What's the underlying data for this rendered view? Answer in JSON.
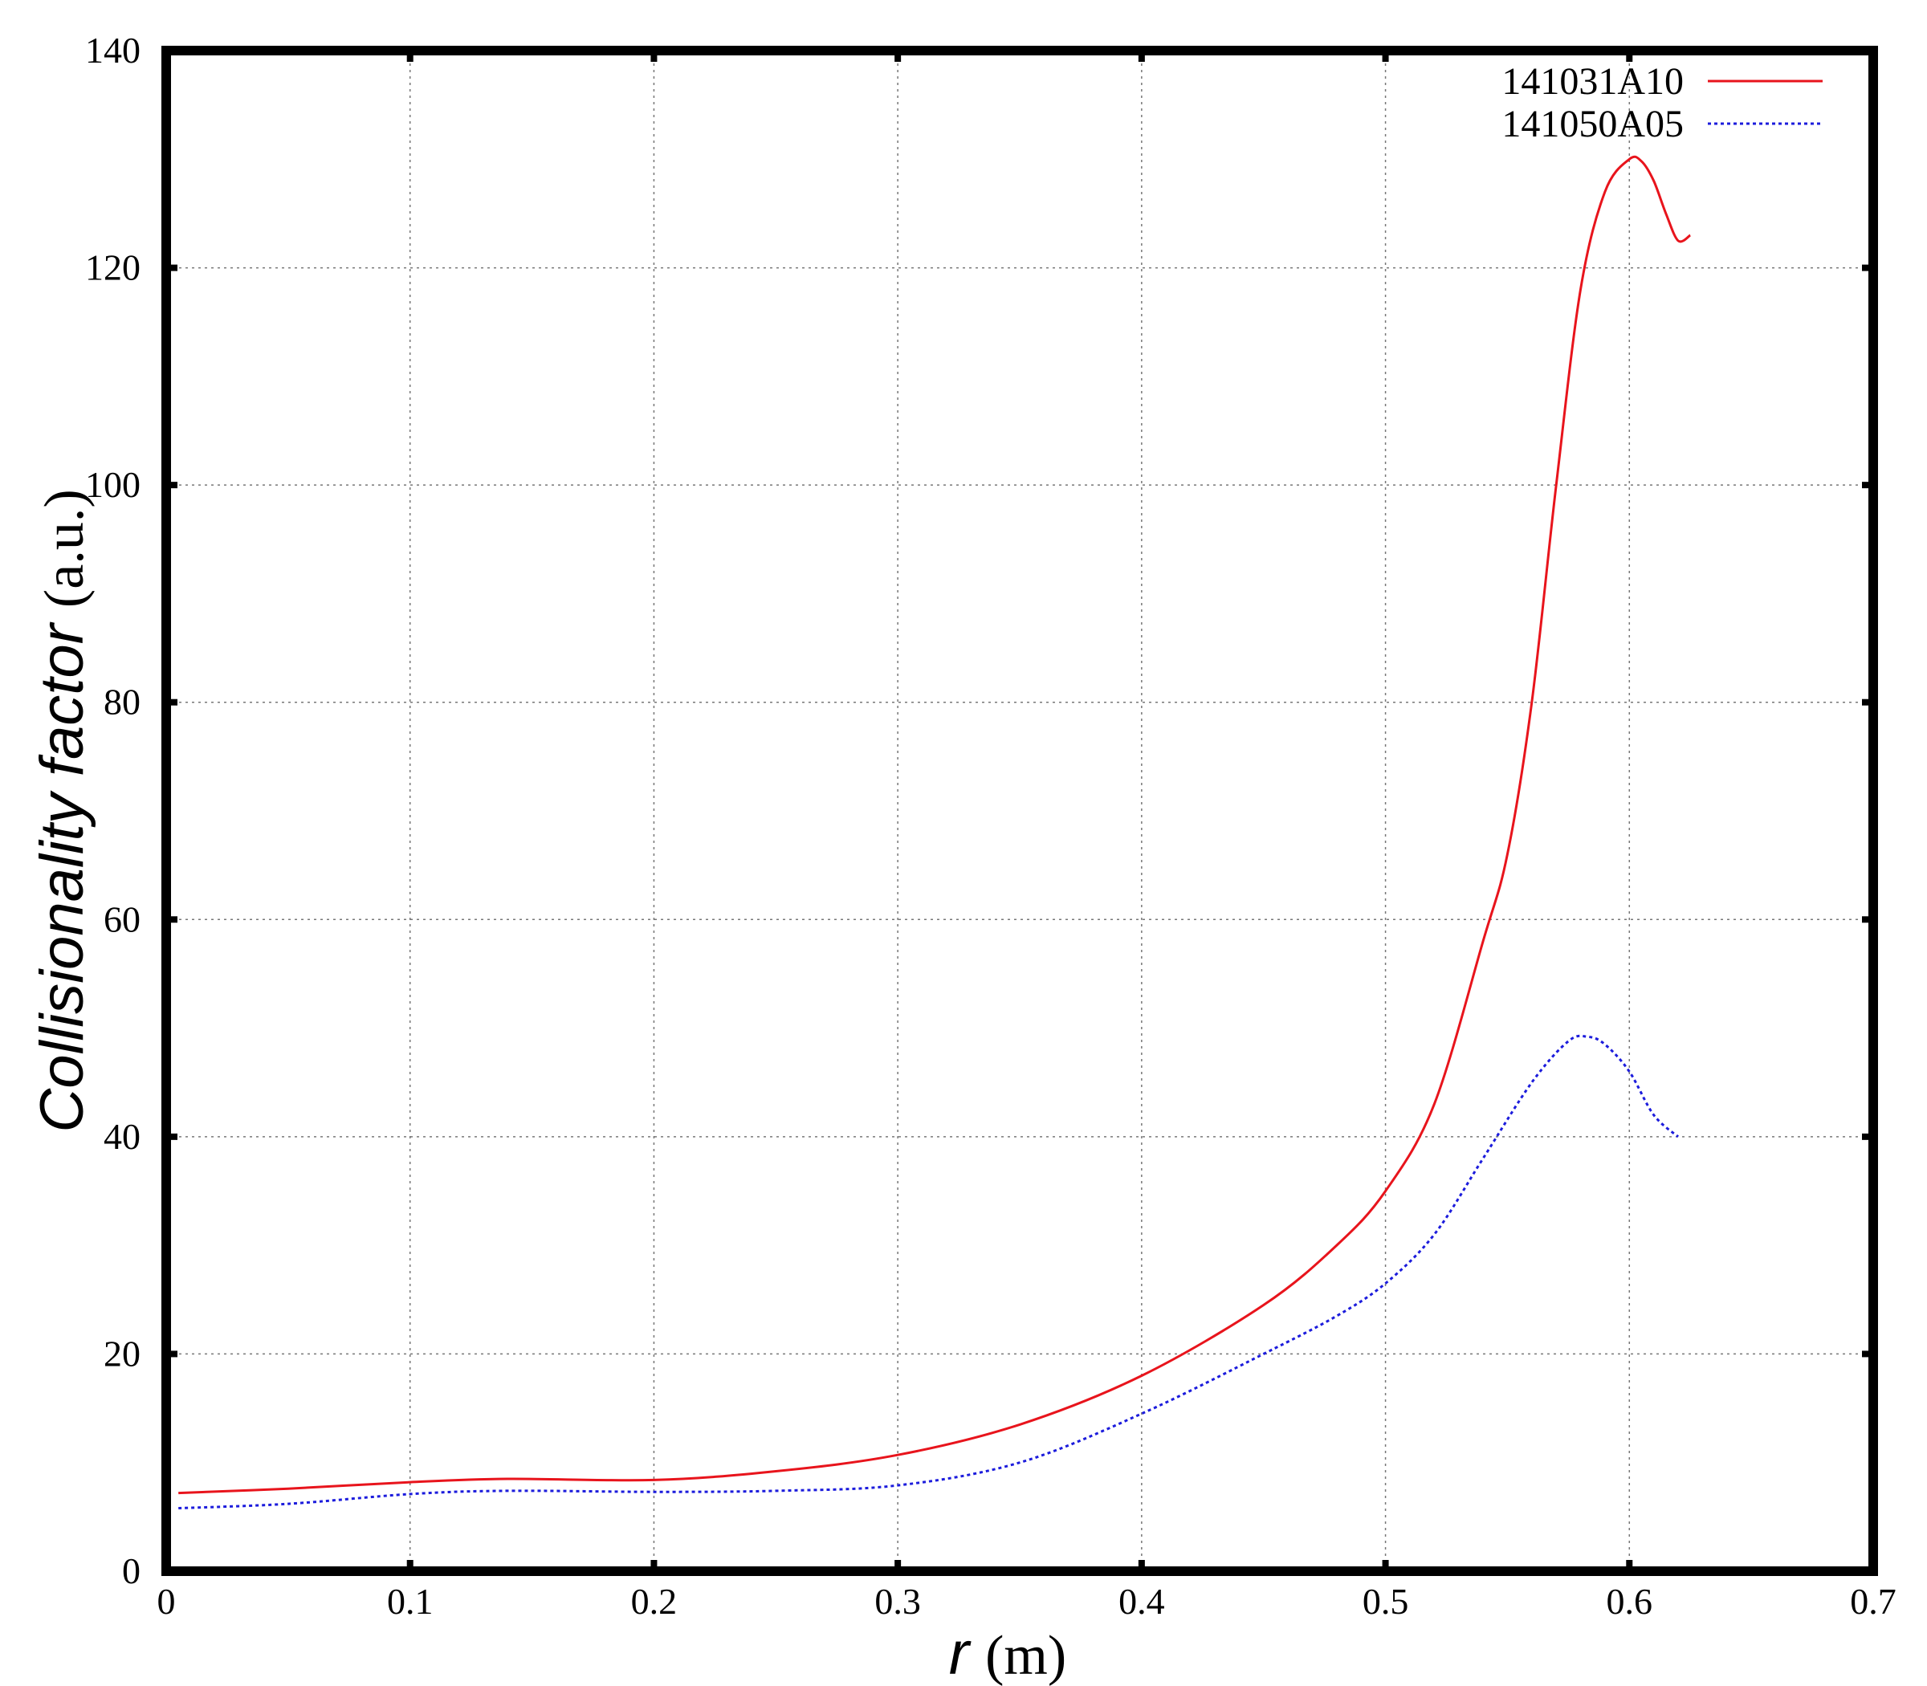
{
  "chart_data": {
    "type": "line",
    "title": "",
    "xlabel": {
      "symbol": "r",
      "unit": "(m)"
    },
    "ylabel": {
      "symbol": "Collisionality factor",
      "unit": "(a.u.)"
    },
    "xlim": [
      0,
      0.7
    ],
    "ylim": [
      0,
      140
    ],
    "xticks": [
      0,
      0.1,
      0.2,
      0.3,
      0.4,
      0.5,
      0.6,
      0.7
    ],
    "xtick_labels": [
      "0",
      "0.1",
      "0.2",
      "0.3",
      "0.4",
      "0.5",
      "0.6",
      "0.7"
    ],
    "yticks": [
      0,
      20,
      40,
      60,
      80,
      100,
      120,
      140
    ],
    "ytick_labels": [
      "0",
      "20",
      "40",
      "60",
      "80",
      "100",
      "120",
      "140"
    ],
    "grid": true,
    "legend_position": "top-right",
    "series": [
      {
        "name": "141031A10",
        "color": "#e8141c",
        "style": "solid",
        "points": [
          [
            0.005,
            7.2
          ],
          [
            0.05,
            7.6
          ],
          [
            0.1,
            8.2
          ],
          [
            0.14,
            8.5
          ],
          [
            0.2,
            8.4
          ],
          [
            0.25,
            9.2
          ],
          [
            0.3,
            10.7
          ],
          [
            0.35,
            13.5
          ],
          [
            0.4,
            18.0
          ],
          [
            0.45,
            24.5
          ],
          [
            0.48,
            30.0
          ],
          [
            0.5,
            35.0
          ],
          [
            0.52,
            43.0
          ],
          [
            0.54,
            58.0
          ],
          [
            0.55,
            66.0
          ],
          [
            0.56,
            80.0
          ],
          [
            0.57,
            100.0
          ],
          [
            0.58,
            118.0
          ],
          [
            0.59,
            127.0
          ],
          [
            0.6,
            130.0
          ],
          [
            0.605,
            129.8
          ],
          [
            0.61,
            128.0
          ],
          [
            0.615,
            125.0
          ],
          [
            0.62,
            122.5
          ],
          [
            0.625,
            123.0
          ]
        ]
      },
      {
        "name": "141050A05",
        "color": "#1c1cdc",
        "style": "dotted",
        "points": [
          [
            0.005,
            5.8
          ],
          [
            0.05,
            6.2
          ],
          [
            0.1,
            7.1
          ],
          [
            0.14,
            7.4
          ],
          [
            0.2,
            7.3
          ],
          [
            0.25,
            7.4
          ],
          [
            0.3,
            7.9
          ],
          [
            0.35,
            10.0
          ],
          [
            0.4,
            14.5
          ],
          [
            0.45,
            20.0
          ],
          [
            0.48,
            23.5
          ],
          [
            0.5,
            26.5
          ],
          [
            0.52,
            31.0
          ],
          [
            0.54,
            38.0
          ],
          [
            0.56,
            45.0
          ],
          [
            0.575,
            48.8
          ],
          [
            0.583,
            49.2
          ],
          [
            0.59,
            48.5
          ],
          [
            0.6,
            46.0
          ],
          [
            0.61,
            42.0
          ],
          [
            0.62,
            40.0
          ]
        ]
      }
    ]
  }
}
